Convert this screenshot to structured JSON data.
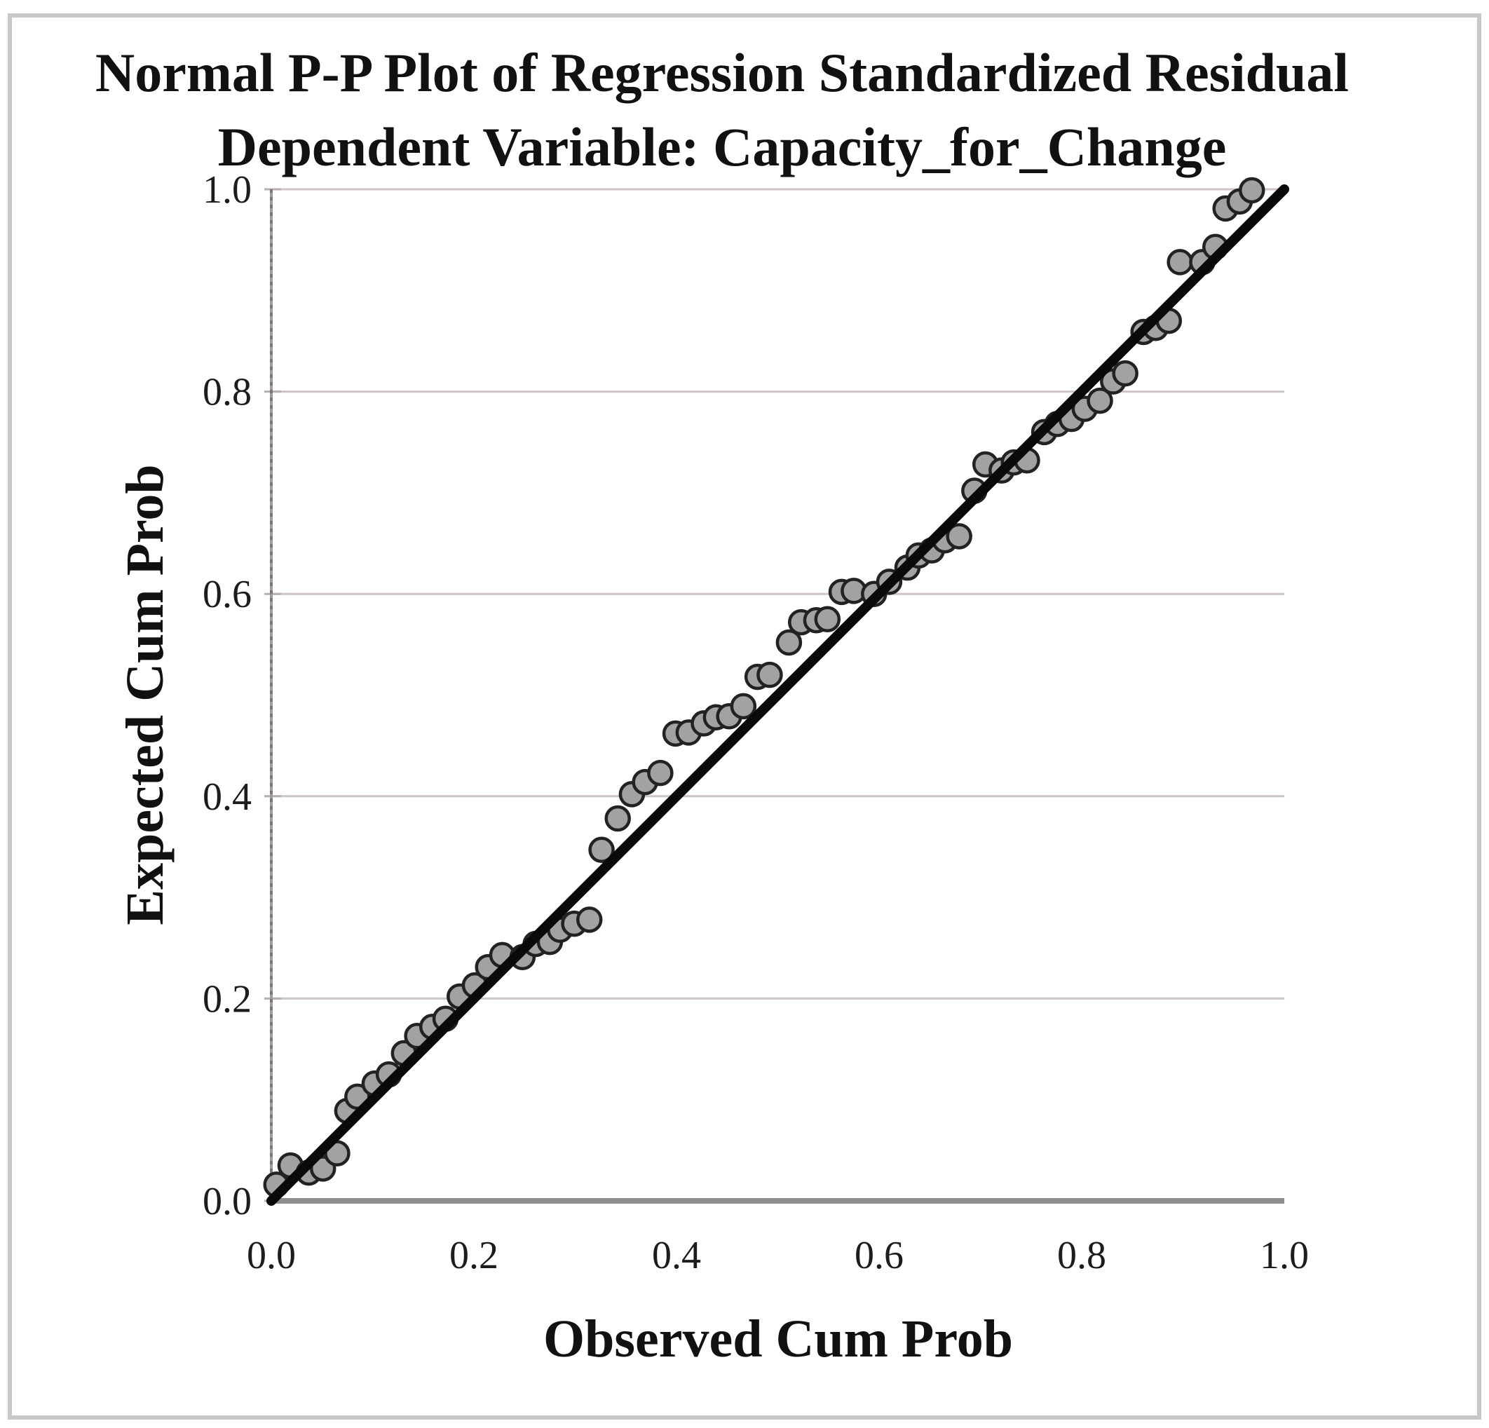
{
  "title": {
    "line1": "Normal P-P Plot of Regression Standardized Residual",
    "line2": "Dependent Variable: Capacity_for_Change"
  },
  "axes": {
    "x_label": "Observed Cum Prob",
    "y_label": "Expected Cum Prob",
    "x_ticks": [
      "0.0",
      "0.2",
      "0.4",
      "0.6",
      "0.8",
      "1.0"
    ],
    "y_ticks": [
      "0.0",
      "0.2",
      "0.4",
      "0.6",
      "0.8",
      "1.0"
    ]
  },
  "colors": {
    "background": "#ffffff",
    "figure_border": "#c8c8c8",
    "gridline": "#ccc4ca",
    "axis_line": "#8f8f8f",
    "axis_line_y": "#a19aa0",
    "tick_mark": "#b5aeb4",
    "reference_line": "#0a0a0a",
    "point_fill": "#a2a2a2",
    "point_stroke": "#222222",
    "text": "#111111"
  },
  "chart_data": {
    "type": "scatter",
    "title": "Normal P-P Plot of Regression Standardized Residual",
    "subtitle": "Dependent Variable: Capacity_for_Change",
    "xlabel": "Observed Cum Prob",
    "ylabel": "Expected Cum Prob",
    "xlim": [
      0,
      1
    ],
    "ylim": [
      0,
      1
    ],
    "x_tick_values": [
      0,
      0.2,
      0.4,
      0.6,
      0.8,
      1.0
    ],
    "y_tick_values": [
      0,
      0.2,
      0.4,
      0.6,
      0.8,
      1.0
    ],
    "grid": "horizontal-only",
    "legend": "none",
    "reference_line": {
      "from": [
        0,
        0
      ],
      "to": [
        1,
        1
      ]
    },
    "series": [
      {
        "name": "standardized-residual-points",
        "points": [
          [
            0.005,
            0.016
          ],
          [
            0.019,
            0.035
          ],
          [
            0.037,
            0.028
          ],
          [
            0.051,
            0.032
          ],
          [
            0.065,
            0.047
          ],
          [
            0.075,
            0.089
          ],
          [
            0.085,
            0.103
          ],
          [
            0.102,
            0.116
          ],
          [
            0.116,
            0.125
          ],
          [
            0.131,
            0.146
          ],
          [
            0.144,
            0.163
          ],
          [
            0.159,
            0.172
          ],
          [
            0.172,
            0.18
          ],
          [
            0.186,
            0.202
          ],
          [
            0.201,
            0.213
          ],
          [
            0.214,
            0.231
          ],
          [
            0.228,
            0.243
          ],
          [
            0.248,
            0.241
          ],
          [
            0.261,
            0.254
          ],
          [
            0.275,
            0.256
          ],
          [
            0.285,
            0.268
          ],
          [
            0.299,
            0.274
          ],
          [
            0.314,
            0.278
          ],
          [
            0.326,
            0.347
          ],
          [
            0.342,
            0.378
          ],
          [
            0.356,
            0.402
          ],
          [
            0.369,
            0.414
          ],
          [
            0.384,
            0.423
          ],
          [
            0.399,
            0.462
          ],
          [
            0.412,
            0.463
          ],
          [
            0.427,
            0.472
          ],
          [
            0.439,
            0.478
          ],
          [
            0.452,
            0.479
          ],
          [
            0.466,
            0.489
          ],
          [
            0.48,
            0.518
          ],
          [
            0.492,
            0.52
          ],
          [
            0.511,
            0.552
          ],
          [
            0.523,
            0.572
          ],
          [
            0.538,
            0.574
          ],
          [
            0.549,
            0.575
          ],
          [
            0.563,
            0.602
          ],
          [
            0.575,
            0.603
          ],
          [
            0.595,
            0.6
          ],
          [
            0.61,
            0.612
          ],
          [
            0.628,
            0.626
          ],
          [
            0.639,
            0.638
          ],
          [
            0.652,
            0.643
          ],
          [
            0.665,
            0.653
          ],
          [
            0.679,
            0.657
          ],
          [
            0.694,
            0.702
          ],
          [
            0.705,
            0.728
          ],
          [
            0.721,
            0.722
          ],
          [
            0.733,
            0.73
          ],
          [
            0.746,
            0.732
          ],
          [
            0.763,
            0.76
          ],
          [
            0.776,
            0.768
          ],
          [
            0.79,
            0.773
          ],
          [
            0.803,
            0.783
          ],
          [
            0.818,
            0.791
          ],
          [
            0.831,
            0.81
          ],
          [
            0.843,
            0.818
          ],
          [
            0.861,
            0.859
          ],
          [
            0.873,
            0.863
          ],
          [
            0.886,
            0.87
          ],
          [
            0.897,
            0.928
          ],
          [
            0.919,
            0.928
          ],
          [
            0.932,
            0.943
          ],
          [
            0.942,
            0.981
          ],
          [
            0.956,
            0.988
          ],
          [
            0.968,
            0.999
          ]
        ]
      }
    ]
  }
}
